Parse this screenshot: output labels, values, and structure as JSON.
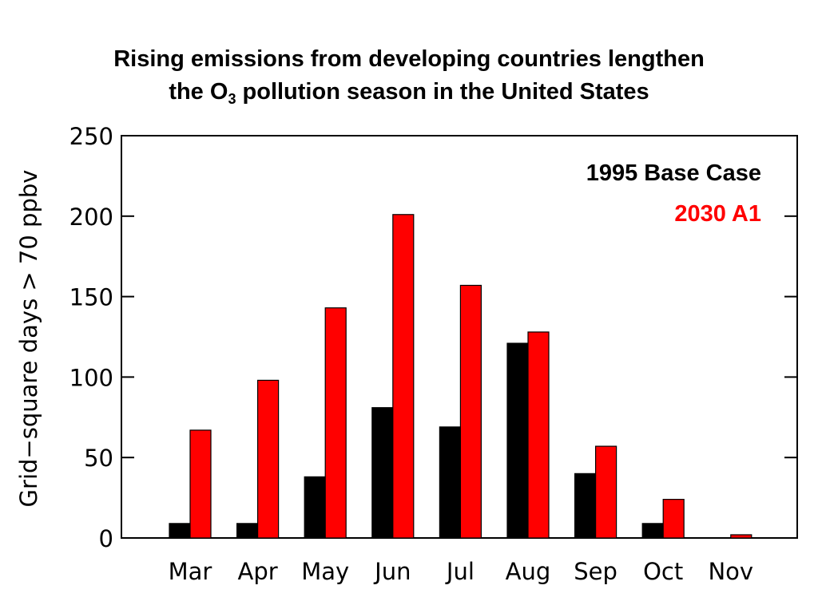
{
  "title": {
    "line1": "Rising emissions from developing countries lengthen",
    "line2_pre": "the O",
    "line2_sub": "3",
    "line2_post": " pollution season in the United States"
  },
  "chart_data": {
    "type": "bar",
    "categories": [
      "Mar",
      "Apr",
      "May",
      "Jun",
      "Jul",
      "Aug",
      "Sep",
      "Oct",
      "Nov"
    ],
    "series": [
      {
        "name": "1995 Base Case",
        "color": "#000000",
        "values": [
          9,
          9,
          38,
          81,
          69,
          121,
          40,
          9,
          0
        ]
      },
      {
        "name": "2030 A1",
        "color": "#ff0000",
        "values": [
          67,
          98,
          143,
          201,
          157,
          128,
          57,
          24,
          2
        ]
      }
    ],
    "ylabel": "Grid−square days > 70 ppbv",
    "xlabel": "",
    "ylim": [
      0,
      250
    ],
    "yticks": [
      0,
      50,
      100,
      150,
      200,
      250
    ],
    "legend_position": "top-right",
    "grid": false
  }
}
